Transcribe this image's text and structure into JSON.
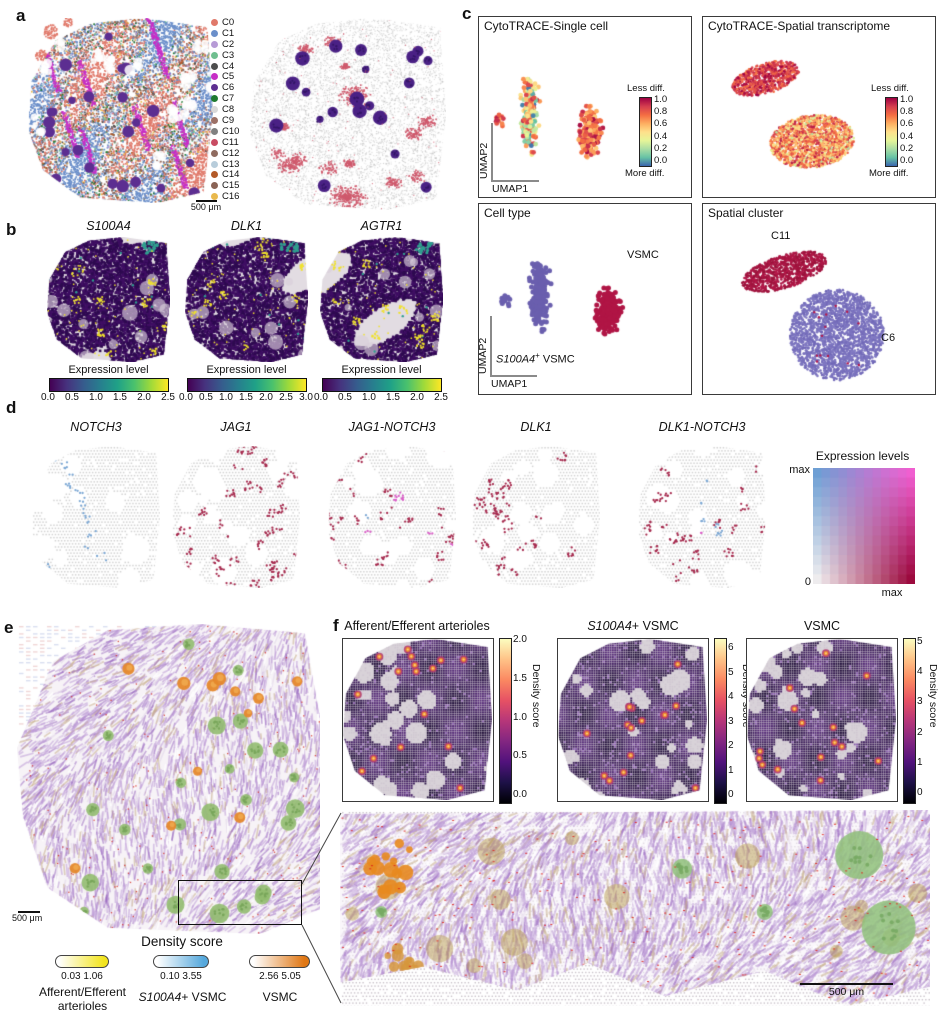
{
  "colors": {
    "cluster_palette": {
      "C0": "#e0796a",
      "C1": "#6b8fca",
      "C2": "#b79bd6",
      "C3": "#6fbf8f",
      "C4": "#4d4d4d",
      "C5": "#c62ec6",
      "C6": "#5c2e91",
      "C7": "#1f7a2f",
      "C8": "#d9d9d9",
      "C9": "#9c7066",
      "C10": "#808080",
      "C11": "#c84b62",
      "C12": "#8f6b5f",
      "C13": "#b8cddb",
      "C14": "#b35a28",
      "C15": "#8a6355",
      "C16": "#e9b94d"
    },
    "viridis": [
      "#440154",
      "#46327e",
      "#365c8d",
      "#277f8e",
      "#1fa187",
      "#4ac16d",
      "#a0da39",
      "#fde725"
    ],
    "spectral": [
      "#3b66ad",
      "#66c2a5",
      "#aadda4",
      "#e6f598",
      "#fee08b",
      "#fdae61",
      "#f46d43",
      "#d53e4f",
      "#9e0142"
    ],
    "magma": [
      "#000004",
      "#1d1147",
      "#51127c",
      "#822681",
      "#b63679",
      "#e65164",
      "#fb8861",
      "#fec287",
      "#fcfdbf"
    ],
    "legend2d": {
      "tl": "#6e9fd4",
      "tr": "#f05fd0",
      "bl": "#eeecee",
      "br": "#9c0a3e"
    },
    "pill_yellow": "#f2e41e",
    "pill_blue": "#55a8dc",
    "pill_orange": "#e07714",
    "umap_purple": "#6a5fae",
    "umap_red": "#b01545"
  },
  "panel_a": {
    "label": "a",
    "legend": [
      {
        "id": "C0",
        "color": "#e0796a"
      },
      {
        "id": "C1",
        "color": "#6b8fca"
      },
      {
        "id": "C2",
        "color": "#b79bd6"
      },
      {
        "id": "C3",
        "color": "#6fbf8f"
      },
      {
        "id": "C4",
        "color": "#4d4d4d"
      },
      {
        "id": "C5",
        "color": "#c62ec6"
      },
      {
        "id": "C6",
        "color": "#5c2e91"
      },
      {
        "id": "C7",
        "color": "#1f7a2f"
      },
      {
        "id": "C8",
        "color": "#d9d9d9"
      },
      {
        "id": "C9",
        "color": "#9c7066"
      },
      {
        "id": "C10",
        "color": "#808080"
      },
      {
        "id": "C11",
        "color": "#c84b62"
      },
      {
        "id": "C12",
        "color": "#8f6b5f"
      },
      {
        "id": "C13",
        "color": "#b8cddb"
      },
      {
        "id": "C14",
        "color": "#b35a28"
      },
      {
        "id": "C15",
        "color": "#8a6355"
      },
      {
        "id": "C16",
        "color": "#e9b94d"
      }
    ],
    "scalebar": "500 μm"
  },
  "panel_b": {
    "label": "b",
    "plots": [
      {
        "gene": "S100A4",
        "colorbar_label": "Expression level",
        "ticks": [
          "0.0",
          "0.5",
          "1.0",
          "1.5",
          "2.0",
          "2.5"
        ]
      },
      {
        "gene": "DLK1",
        "colorbar_label": "Expression level",
        "ticks": [
          "0.0",
          "0.5",
          "1.0",
          "1.5",
          "2.0",
          "2.5",
          "3.0"
        ]
      },
      {
        "gene": "AGTR1",
        "colorbar_label": "Expression level",
        "ticks": [
          "0.0",
          "0.5",
          "1.0",
          "1.5",
          "2.0",
          "2.5"
        ]
      }
    ]
  },
  "panel_c": {
    "label": "c",
    "box1": {
      "title": "CytoTRACE-Single cell",
      "xlabel": "UMAP1",
      "ylabel": "UMAP2"
    },
    "box2": {
      "title": "CytoTRACE-Spatial transcriptome"
    },
    "box3": {
      "title": "Cell type",
      "xlabel": "UMAP1",
      "ylabel": "UMAP2",
      "cluster_right": "VSMC",
      "cluster_left_gene": "S100A4",
      "cluster_left_sup": "+",
      "cluster_left_rest": " VSMC"
    },
    "box4": {
      "title": "Spatial cluster",
      "cluster_top": "C11",
      "cluster_bottom": "C6"
    },
    "colorbar": {
      "top": "Less diff.",
      "bottom": "More diff.",
      "ticks": [
        "1.0",
        "0.8",
        "0.6",
        "0.4",
        "0.2",
        "0.0"
      ]
    }
  },
  "panel_d": {
    "label": "d",
    "genes": [
      "NOTCH3",
      "JAG1",
      "JAG1-NOTCH3",
      "DLK1",
      "DLK1-NOTCH3"
    ],
    "legend": {
      "title": "Expression levels",
      "max_top": "max",
      "zero": "0",
      "max_right": "max"
    }
  },
  "panel_e": {
    "label": "e",
    "scalebar": "500 μm",
    "legend": {
      "title": "Density score",
      "bars": [
        {
          "ticks": "0.03 1.06",
          "label_line1": "Afferent/Efferent",
          "label_line2": "arterioles"
        },
        {
          "ticks": "0.10 3.55",
          "label_gene": "S100A4",
          "label_rest": "+ VSMC"
        },
        {
          "ticks": "2.56 5.05",
          "label": "VSMC"
        }
      ]
    }
  },
  "panel_f": {
    "label": "f",
    "plots": [
      {
        "title": "Afferent/Efferent arterioles",
        "cbar_label": "Density score",
        "cbar_ticks": [
          "2.0",
          "1.5",
          "1.0",
          "0.5",
          "0.0"
        ]
      },
      {
        "title_gene": "S100A4",
        "title_rest": "+ VSMC",
        "cbar_label": "Density score",
        "cbar_ticks": [
          "6",
          "5",
          "4",
          "3",
          "2",
          "1",
          "0"
        ]
      },
      {
        "title": "VSMC",
        "cbar_label": "Density score",
        "cbar_ticks": [
          "5",
          "4",
          "3",
          "2",
          "1",
          "0"
        ]
      }
    ],
    "zoom_scalebar": "500 μm"
  }
}
